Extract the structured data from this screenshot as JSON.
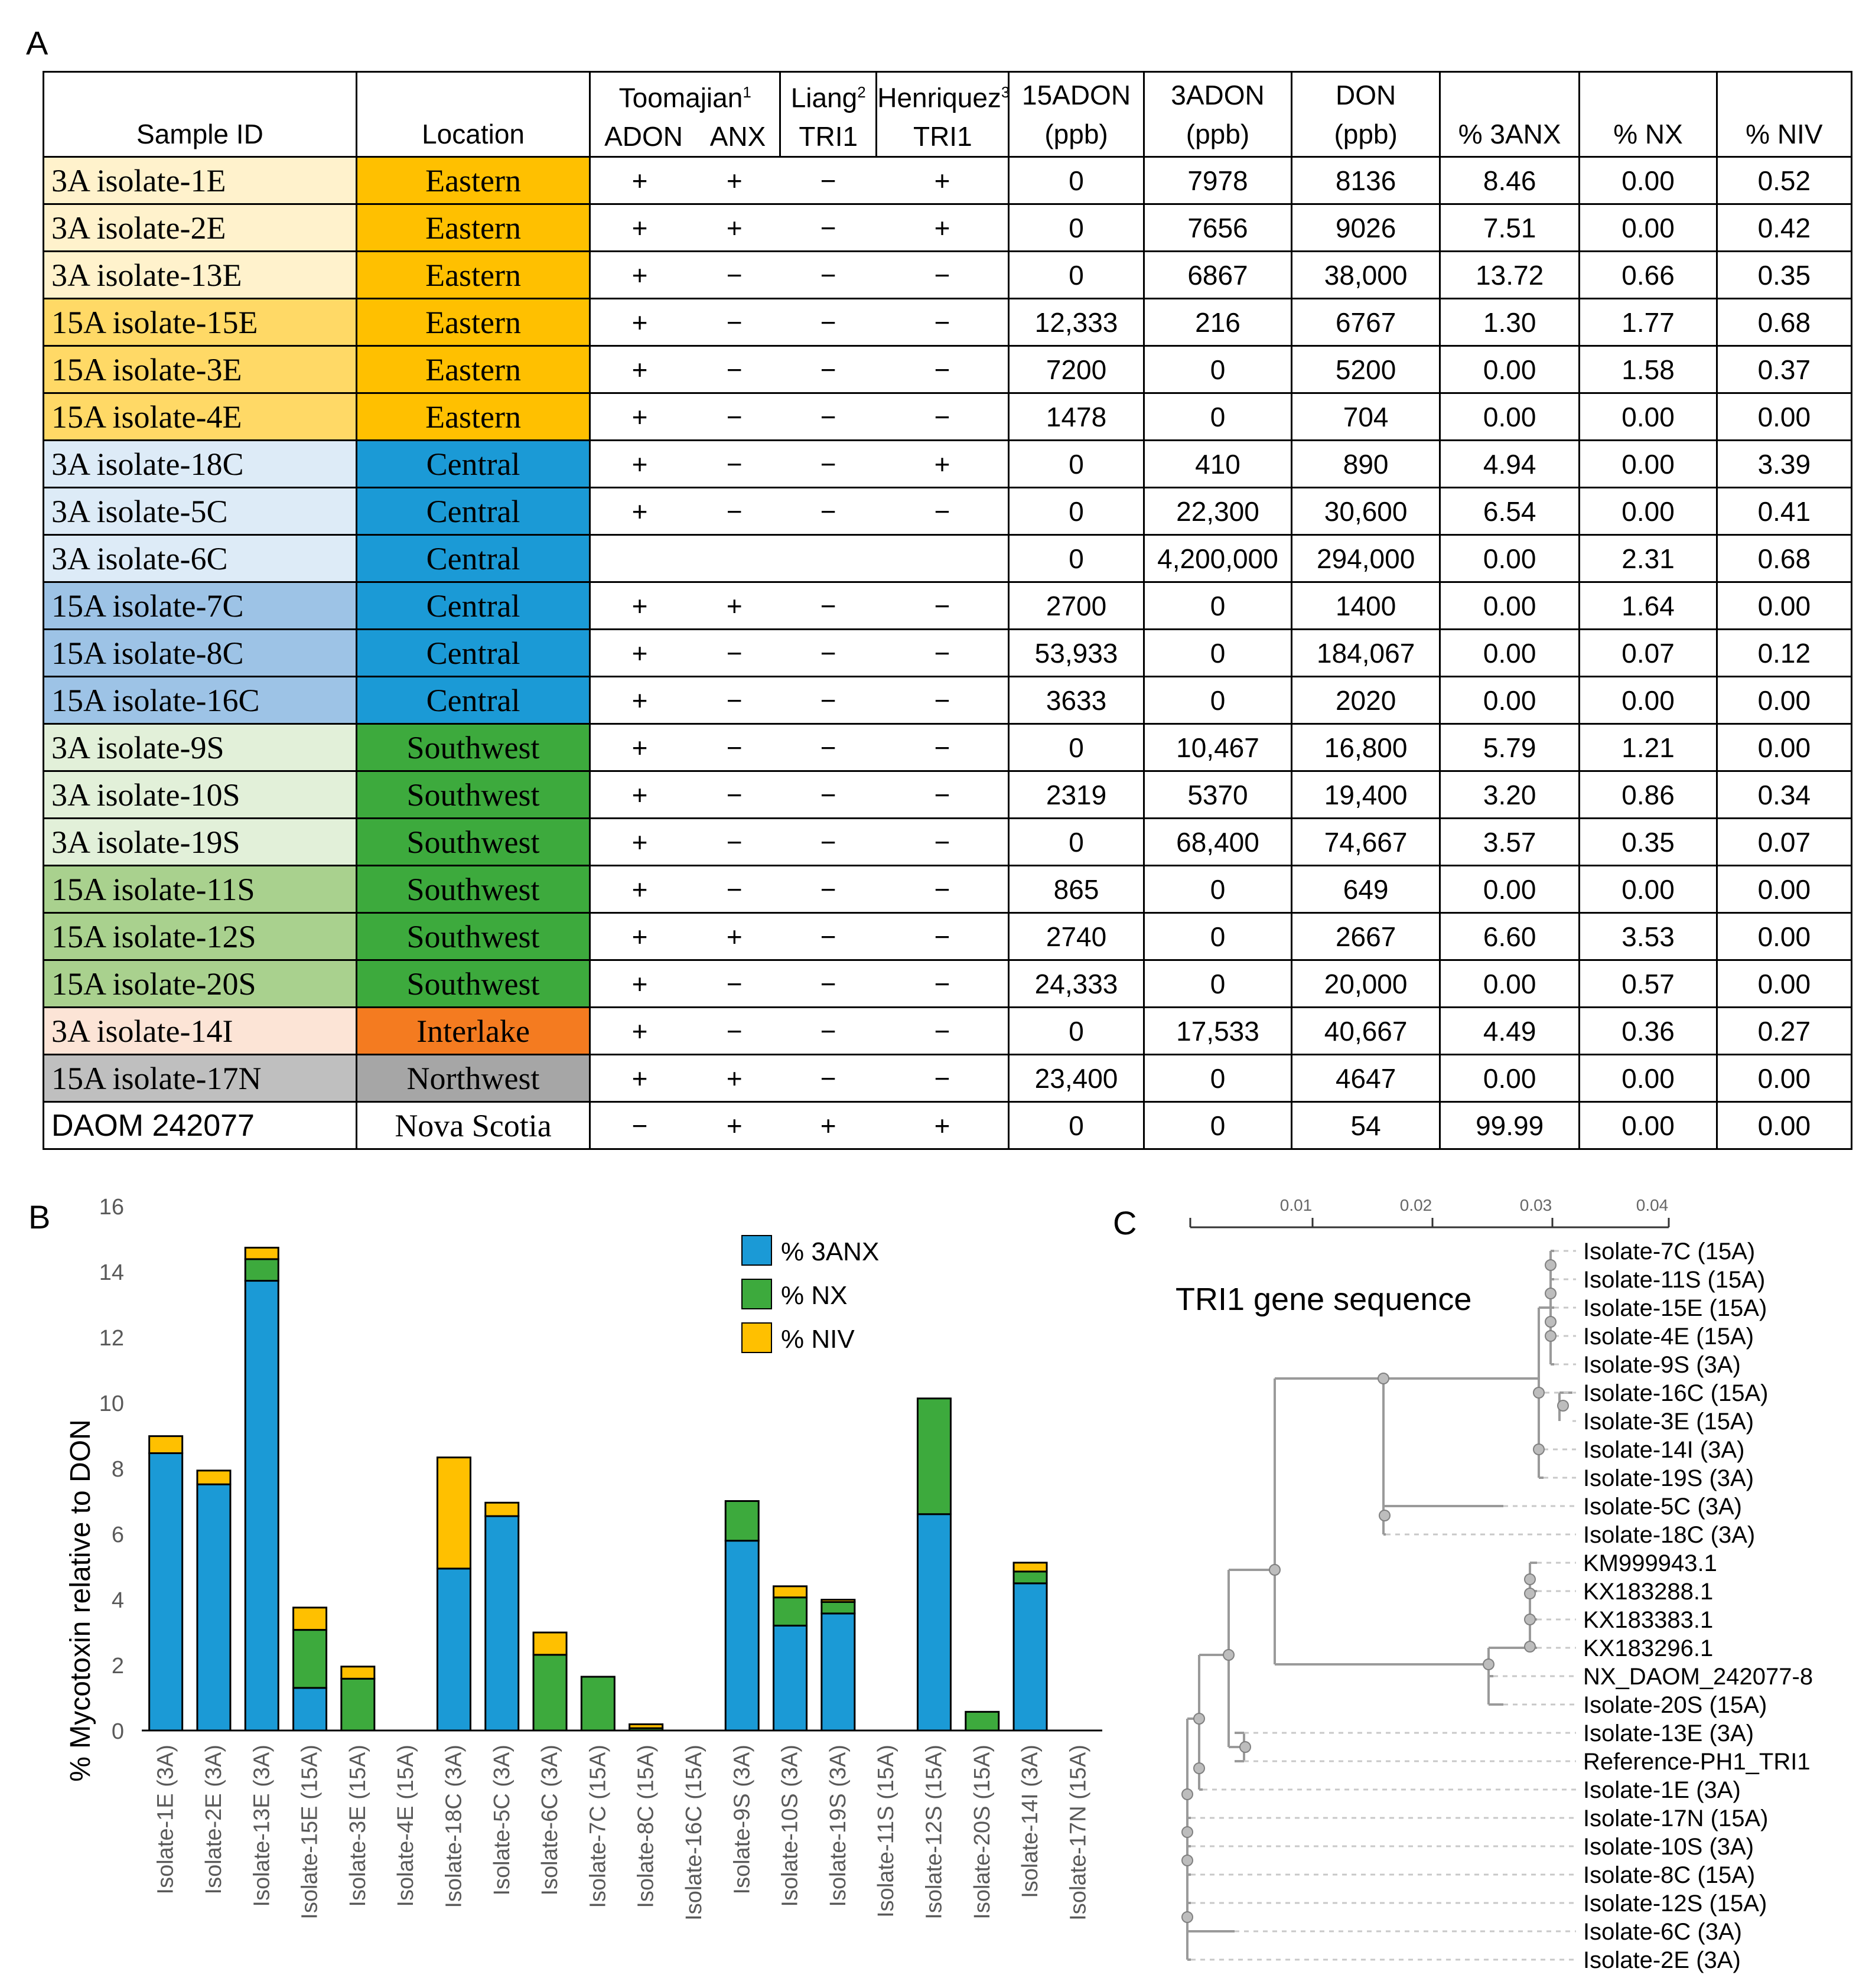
{
  "panels": {
    "a": "A",
    "b": "B",
    "c": "C"
  },
  "table": {
    "headers": {
      "sample_id": "Sample ID",
      "location": "Location",
      "toomajian": "Toomajian",
      "toomajian_sup": "1",
      "toomajian_adon": "ADON",
      "toomajian_anx": "ANX",
      "liang": "Liang",
      "liang_sup": "2",
      "liang_tri1": "TRI1",
      "henriquez": "Henriquez",
      "henriquez_sup": "3",
      "henriquez_tri1": "TRI1",
      "c15adon_1": "15ADON",
      "c15adon_2": "(ppb)",
      "c3adon_1": "3ADON",
      "c3adon_2": "(ppb)",
      "don_1": "DON",
      "don_2": "(ppb)",
      "p3anx": "% 3ANX",
      "pnx": "% NX",
      "pniv": "% NIV"
    },
    "rows": [
      {
        "id": "3A isolate-1E",
        "loc": "Eastern",
        "adon": "+",
        "anx": "+",
        "liang": "−",
        "henr": "+",
        "a15": "0",
        "a3": "7978",
        "don": "8136",
        "p3anx": "8.46",
        "pnx": "0.00",
        "pniv": "0.52",
        "id_color": "#fff2cc",
        "loc_color": "#ffc000"
      },
      {
        "id": "3A isolate-2E",
        "loc": "Eastern",
        "adon": "+",
        "anx": "+",
        "liang": "−",
        "henr": "+",
        "a15": "0",
        "a3": "7656",
        "don": "9026",
        "p3anx": "7.51",
        "pnx": "0.00",
        "pniv": "0.42",
        "id_color": "#fff2cc",
        "loc_color": "#ffc000"
      },
      {
        "id": "3A isolate-13E",
        "loc": "Eastern",
        "adon": "+",
        "anx": "−",
        "liang": "−",
        "henr": "−",
        "a15": "0",
        "a3": "6867",
        "don": "38,000",
        "p3anx": "13.72",
        "pnx": "0.66",
        "pniv": "0.35",
        "id_color": "#fff2cc",
        "loc_color": "#ffc000"
      },
      {
        "id": "15A isolate-15E",
        "loc": "Eastern",
        "adon": "+",
        "anx": "−",
        "liang": "−",
        "henr": "−",
        "a15": "12,333",
        "a3": "216",
        "don": "6767",
        "p3anx": "1.30",
        "pnx": "1.77",
        "pniv": "0.68",
        "id_color": "#ffd966",
        "loc_color": "#ffc000"
      },
      {
        "id": "15A isolate-3E",
        "loc": "Eastern",
        "adon": "+",
        "anx": "−",
        "liang": "−",
        "henr": "−",
        "a15": "7200",
        "a3": "0",
        "don": "5200",
        "p3anx": "0.00",
        "pnx": "1.58",
        "pniv": "0.37",
        "id_color": "#ffd966",
        "loc_color": "#ffc000"
      },
      {
        "id": "15A isolate-4E",
        "loc": "Eastern",
        "adon": "+",
        "anx": "−",
        "liang": "−",
        "henr": "−",
        "a15": "1478",
        "a3": "0",
        "don": "704",
        "p3anx": "0.00",
        "pnx": "0.00",
        "pniv": "0.00",
        "id_color": "#ffd966",
        "loc_color": "#ffc000"
      },
      {
        "id": "3A isolate-18C",
        "loc": "Central",
        "adon": "+",
        "anx": "−",
        "liang": "−",
        "henr": "+",
        "a15": "0",
        "a3": "410",
        "don": "890",
        "p3anx": "4.94",
        "pnx": "0.00",
        "pniv": "3.39",
        "id_color": "#ddebf7",
        "loc_color": "#1b9ad6"
      },
      {
        "id": "3A isolate-5C",
        "loc": "Central",
        "adon": "+",
        "anx": "−",
        "liang": "−",
        "henr": "−",
        "a15": "0",
        "a3": "22,300",
        "don": "30,600",
        "p3anx": "6.54",
        "pnx": "0.00",
        "pniv": "0.41",
        "id_color": "#ddebf7",
        "loc_color": "#1b9ad6"
      },
      {
        "id": "3A isolate-6C",
        "loc": "Central",
        "adon": "",
        "anx": "",
        "liang": "",
        "henr": "",
        "a15": "0",
        "a3": "4,200,000",
        "don": "294,000",
        "p3anx": "0.00",
        "pnx": "2.31",
        "pniv": "0.68",
        "id_color": "#ddebf7",
        "loc_color": "#1b9ad6"
      },
      {
        "id": "15A isolate-7C",
        "loc": "Central",
        "adon": "+",
        "anx": "+",
        "liang": "−",
        "henr": "−",
        "a15": "2700",
        "a3": "0",
        "don": "1400",
        "p3anx": "0.00",
        "pnx": "1.64",
        "pniv": "0.00",
        "id_color": "#9dc3e6",
        "loc_color": "#1b9ad6"
      },
      {
        "id": "15A isolate-8C",
        "loc": "Central",
        "adon": "+",
        "anx": "−",
        "liang": "−",
        "henr": "−",
        "a15": "53,933",
        "a3": "0",
        "don": "184,067",
        "p3anx": "0.00",
        "pnx": "0.07",
        "pniv": "0.12",
        "id_color": "#9dc3e6",
        "loc_color": "#1b9ad6"
      },
      {
        "id": "15A isolate-16C",
        "loc": "Central",
        "adon": "+",
        "anx": "−",
        "liang": "−",
        "henr": "−",
        "a15": "3633",
        "a3": "0",
        "don": "2020",
        "p3anx": "0.00",
        "pnx": "0.00",
        "pniv": "0.00",
        "id_color": "#9dc3e6",
        "loc_color": "#1b9ad6"
      },
      {
        "id": "3A isolate-9S",
        "loc": "Southwest",
        "adon": "+",
        "anx": "−",
        "liang": "−",
        "henr": "−",
        "a15": "0",
        "a3": "10,467",
        "don": "16,800",
        "p3anx": "5.79",
        "pnx": "1.21",
        "pniv": "0.00",
        "id_color": "#e2f0d9",
        "loc_color": "#3daa3d"
      },
      {
        "id": "3A isolate-10S",
        "loc": "Southwest",
        "adon": "+",
        "anx": "−",
        "liang": "−",
        "henr": "−",
        "a15": "2319",
        "a3": "5370",
        "don": "19,400",
        "p3anx": "3.20",
        "pnx": "0.86",
        "pniv": "0.34",
        "id_color": "#e2f0d9",
        "loc_color": "#3daa3d"
      },
      {
        "id": "3A isolate-19S",
        "loc": "Southwest",
        "adon": "+",
        "anx": "−",
        "liang": "−",
        "henr": "−",
        "a15": "0",
        "a3": "68,400",
        "don": "74,667",
        "p3anx": "3.57",
        "pnx": "0.35",
        "pniv": "0.07",
        "id_color": "#e2f0d9",
        "loc_color": "#3daa3d"
      },
      {
        "id": "15A isolate-11S",
        "loc": "Southwest",
        "adon": "+",
        "anx": "−",
        "liang": "−",
        "henr": "−",
        "a15": "865",
        "a3": "0",
        "don": "649",
        "p3anx": "0.00",
        "pnx": "0.00",
        "pniv": "0.00",
        "id_color": "#a9d18e",
        "loc_color": "#3daa3d"
      },
      {
        "id": "15A isolate-12S",
        "loc": "Southwest",
        "adon": "+",
        "anx": "+",
        "liang": "−",
        "henr": "−",
        "a15": "2740",
        "a3": "0",
        "don": "2667",
        "p3anx": "6.60",
        "pnx": "3.53",
        "pniv": "0.00",
        "id_color": "#a9d18e",
        "loc_color": "#3daa3d"
      },
      {
        "id": "15A isolate-20S",
        "loc": "Southwest",
        "adon": "+",
        "anx": "−",
        "liang": "−",
        "henr": "−",
        "a15": "24,333",
        "a3": "0",
        "don": "20,000",
        "p3anx": "0.00",
        "pnx": "0.57",
        "pniv": "0.00",
        "id_color": "#a9d18e",
        "loc_color": "#3daa3d"
      },
      {
        "id": "3A isolate-14I",
        "loc": "Interlake",
        "adon": "+",
        "anx": "−",
        "liang": "−",
        "henr": "−",
        "a15": "0",
        "a3": "17,533",
        "don": "40,667",
        "p3anx": "4.49",
        "pnx": "0.36",
        "pniv": "0.27",
        "id_color": "#fce4d6",
        "loc_color": "#f47b20"
      },
      {
        "id": "15A isolate-17N",
        "loc": "Northwest",
        "adon": "+",
        "anx": "+",
        "liang": "−",
        "henr": "−",
        "a15": "23,400",
        "a3": "0",
        "don": "4647",
        "p3anx": "0.00",
        "pnx": "0.00",
        "pniv": "0.00",
        "id_color": "#bfbfbf",
        "loc_color": "#a6a6a6"
      },
      {
        "id": "DAOM 242077",
        "loc": "Nova Scotia",
        "adon": "−",
        "anx": "+",
        "liang": "+",
        "henr": "+",
        "a15": "0",
        "a3": "0",
        "don": "54",
        "p3anx": "99.99",
        "pnx": "0.00",
        "pniv": "0.00",
        "id_color": "#ffffff",
        "loc_color": "#ffffff"
      }
    ]
  },
  "chart_data": {
    "type": "bar",
    "stacked": true,
    "ylabel": "% Mycotoxin relative to DON",
    "ylim": [
      0,
      16
    ],
    "yticks": [
      0,
      2,
      4,
      6,
      8,
      10,
      12,
      14,
      16
    ],
    "grid": false,
    "legend_position": "top-right",
    "categories": [
      "Isolate-1E (3A)",
      "Isolate-2E (3A)",
      "Isolate-13E (3A)",
      "Isolate-15E (15A)",
      "Isolate-3E (15A)",
      "Isolate-4E (15A)",
      "Isolate-18C (3A)",
      "Isolate-5C (3A)",
      "Isolate-6C (3A)",
      "Isolate-7C (15A)",
      "Isolate-8C (15A)",
      "Isolate-16C (15A)",
      "Isolate-9S (3A)",
      "Isolate-10S (3A)",
      "Isolate-19S (3A)",
      "Isolate-11S (15A)",
      "Isolate-12S (15A)",
      "Isolate-20S (15A)",
      "Isolate-14I (3A)",
      "Isolate-17N (15A)"
    ],
    "series": [
      {
        "name": "% 3ANX",
        "color": "#1b9ad6",
        "values": [
          8.46,
          7.51,
          13.72,
          1.3,
          0.0,
          0.0,
          4.94,
          6.54,
          0.0,
          0.0,
          0.0,
          0.0,
          5.79,
          3.2,
          3.57,
          0.0,
          6.6,
          0.0,
          4.49,
          0.0
        ]
      },
      {
        "name": "% NX",
        "color": "#3daa3d",
        "values": [
          0.0,
          0.0,
          0.66,
          1.77,
          1.58,
          0.0,
          0.0,
          0.0,
          2.31,
          1.64,
          0.07,
          0.0,
          1.21,
          0.86,
          0.35,
          0.0,
          3.53,
          0.57,
          0.36,
          0.0
        ]
      },
      {
        "name": "% NIV",
        "color": "#ffc000",
        "values": [
          0.52,
          0.42,
          0.35,
          0.68,
          0.37,
          0.0,
          3.39,
          0.41,
          0.68,
          0.0,
          0.12,
          0.0,
          0.0,
          0.34,
          0.07,
          0.0,
          0.0,
          0.0,
          0.27,
          0.0
        ]
      }
    ]
  },
  "tree": {
    "title": "TRI1 gene sequence",
    "scale_ticks": [
      "0.01",
      "0.02",
      "0.03",
      "0.04"
    ],
    "leaves": [
      "Isolate-7C (15A)",
      "Isolate-11S (15A)",
      "Isolate-15E (15A)",
      "Isolate-4E (15A)",
      "Isolate-9S (3A)",
      "Isolate-16C (15A)",
      "Isolate-3E (15A)",
      "Isolate-14I (3A)",
      "Isolate-19S (3A)",
      "Isolate-5C (3A)",
      "Isolate-18C (3A)",
      "KM999943.1",
      "KX183288.1",
      "KX183383.1",
      "KX183296.1",
      "NX_DAOM_242077-8",
      "Isolate-20S (15A)",
      "Isolate-13E (3A)",
      "Reference-PH1_TRI1",
      "Isolate-1E (3A)",
      "Isolate-17N (15A)",
      "Isolate-10S (3A)",
      "Isolate-8C (15A)",
      "Isolate-12S (15A)",
      "Isolate-6C (3A)",
      "Isolate-2E (3A)"
    ]
  }
}
